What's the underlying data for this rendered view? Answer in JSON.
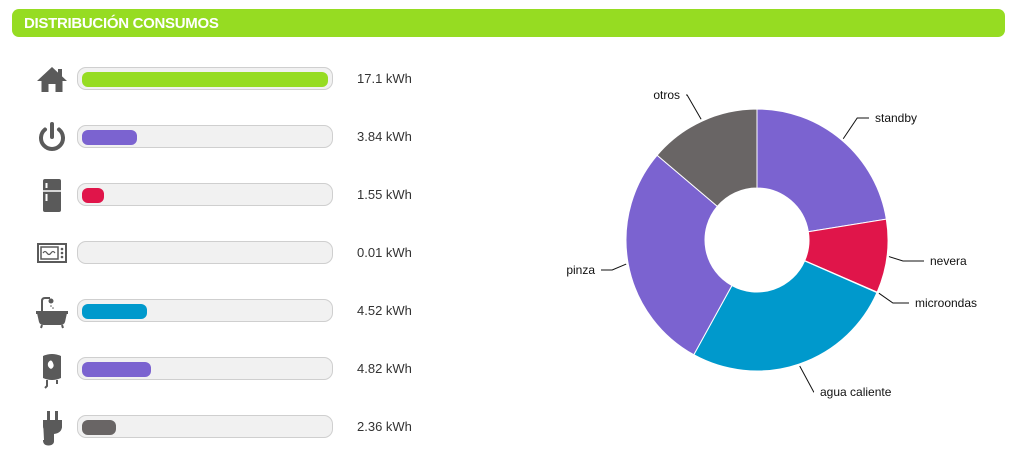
{
  "header": {
    "title": "DISTRIBUCIÓN CONSUMOS"
  },
  "colors": {
    "green": "#96dc22",
    "purple": "#7b63d0",
    "red": "#e0154a",
    "blue": "#0099cc",
    "gray": "#696565",
    "icon": "#5a5a5a"
  },
  "consumption_rows": [
    {
      "icon": "home-icon",
      "value": "17.1 kWh",
      "kwh": 17.1,
      "color": "#96dc22"
    },
    {
      "icon": "power-standby-icon",
      "value": "3.84 kWh",
      "kwh": 3.84,
      "color": "#7b63d0"
    },
    {
      "icon": "fridge-icon",
      "value": "1.55 kWh",
      "kwh": 1.55,
      "color": "#e0154a"
    },
    {
      "icon": "microwave-icon",
      "value": "0.01 kWh",
      "kwh": 0.01,
      "color": "#0099cc"
    },
    {
      "icon": "bathtub-icon",
      "value": "4.52 kWh",
      "kwh": 4.52,
      "color": "#0099cc"
    },
    {
      "icon": "water-heater-icon",
      "value": "4.82 kWh",
      "kwh": 4.82,
      "color": "#7b63d0"
    },
    {
      "icon": "plug-icon",
      "value": "2.36 kWh",
      "kwh": 2.36,
      "color": "#696565"
    }
  ],
  "chart_data": {
    "type": "pie",
    "donut": true,
    "legend": "none",
    "slices": [
      {
        "label": "standby",
        "value": 3.84,
        "color": "#7b63d0"
      },
      {
        "label": "nevera",
        "value": 1.55,
        "color": "#e0154a"
      },
      {
        "label": "microondas",
        "value": 0.01,
        "color": "#e0154a"
      },
      {
        "label": "agua caliente",
        "value": 4.52,
        "color": "#0099cc"
      },
      {
        "label": "pinza",
        "value": 4.82,
        "color": "#7b63d0"
      },
      {
        "label": "otros",
        "value": 2.36,
        "color": "#696565"
      }
    ]
  }
}
